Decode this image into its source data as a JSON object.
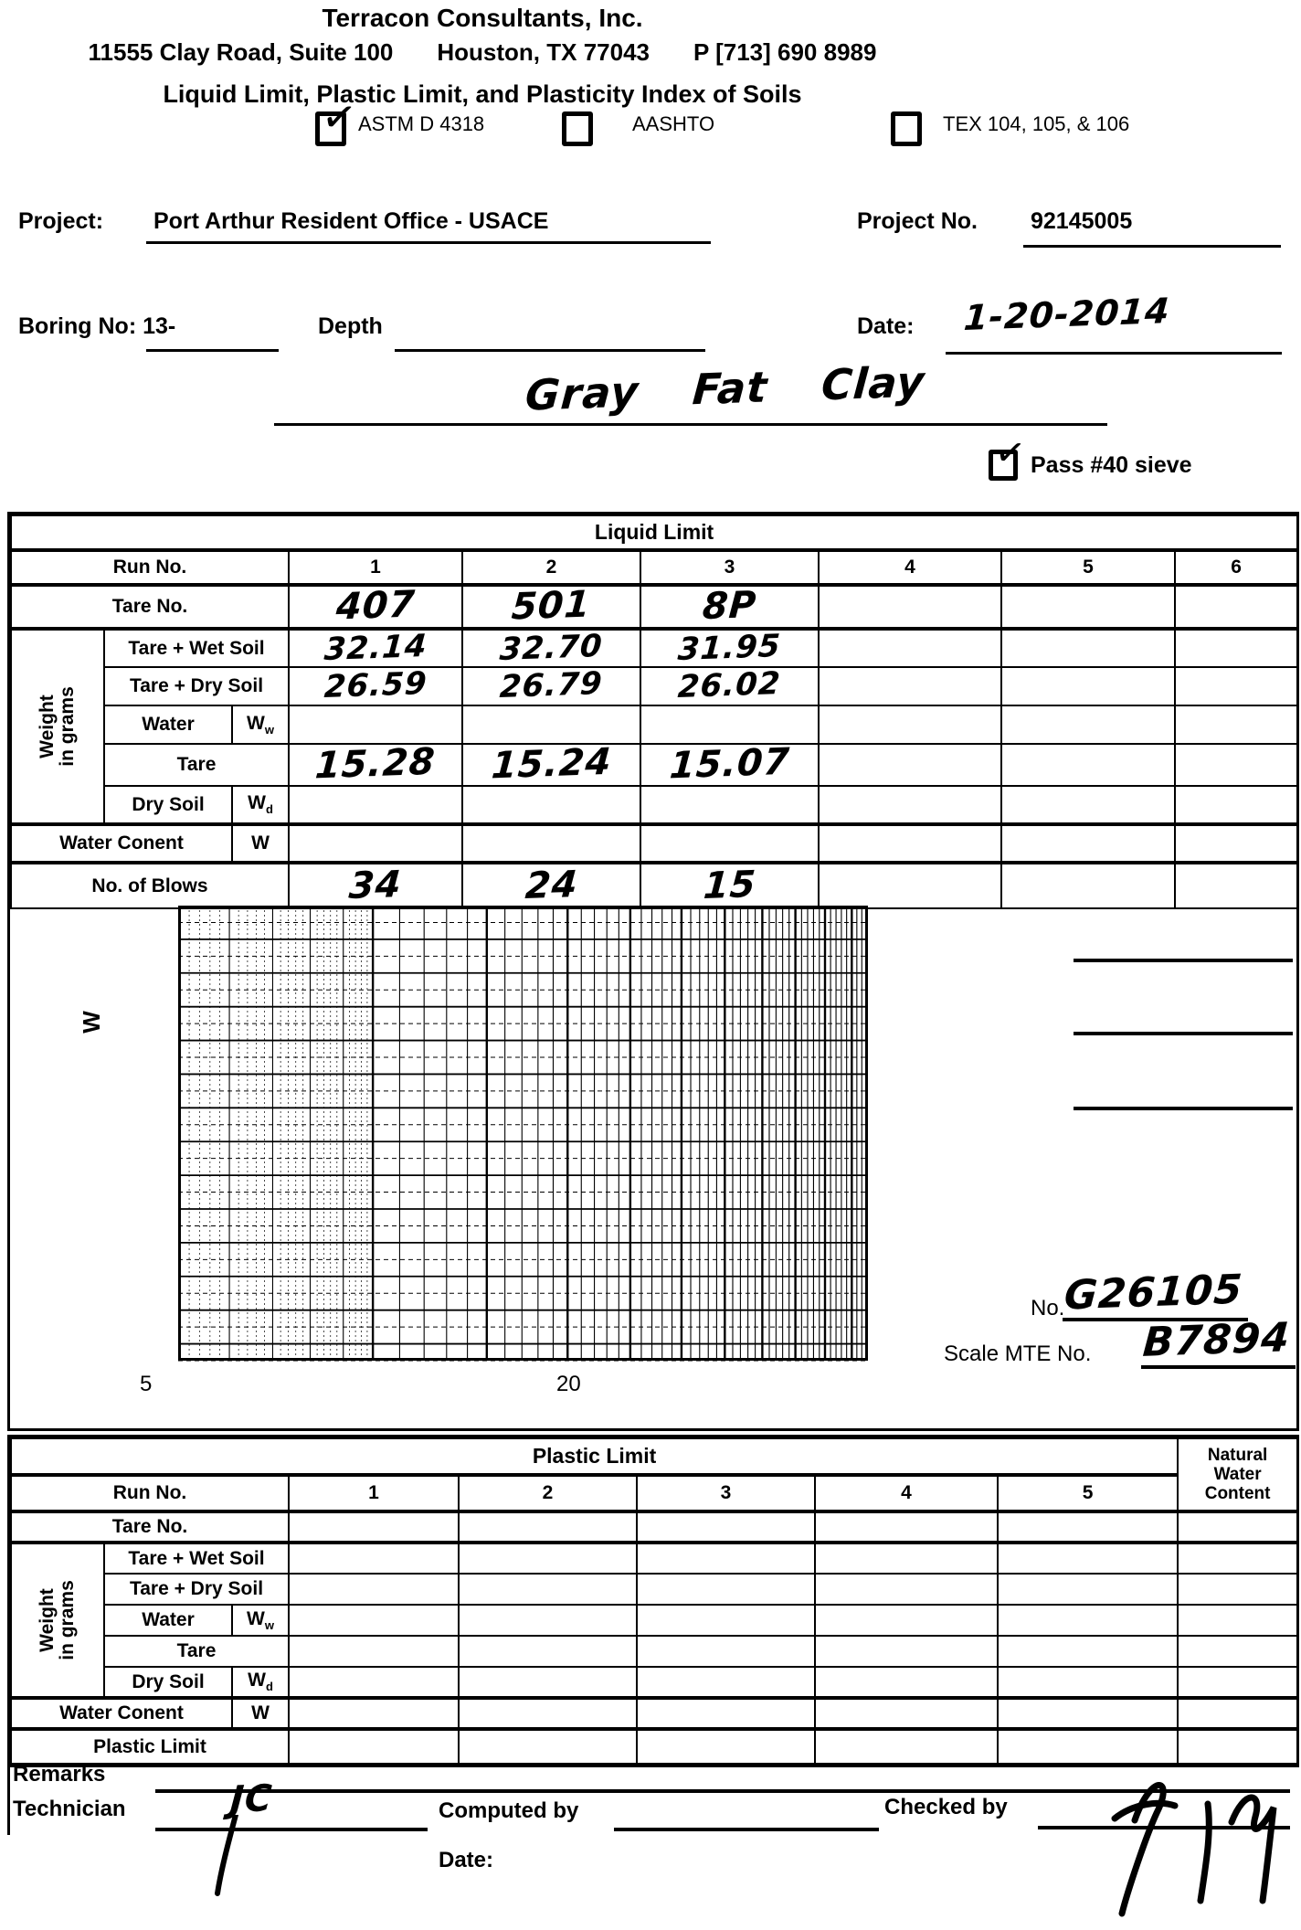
{
  "header": {
    "company": "Terracon Consultants, Inc.",
    "address": "11555 Clay Road, Suite 100",
    "city_state": "Houston, TX 77043",
    "phone": "P  [713] 690 8989",
    "form_title": "Liquid Limit, Plastic Limit, and Plasticity Index of Soils",
    "standards": [
      {
        "label": "ASTM D 4318",
        "checked": true
      },
      {
        "label": "AASHTO",
        "checked": false
      },
      {
        "label": "TEX 104, 105, & 106",
        "checked": false
      }
    ]
  },
  "project": {
    "label": "Project:",
    "value": "Port Arthur Resident Office  -  USACE",
    "number_label": "Project  No.",
    "number": "92145005"
  },
  "boring": {
    "label": "Boring No: 13-",
    "depth_label": "Depth",
    "date_label": "Date:",
    "date": "1-20-2014"
  },
  "sample": {
    "description": "Gray Fat Clay",
    "pass40_label": "Pass #40 sieve",
    "pass40_checked": true
  },
  "liquid_limit": {
    "title": "Liquid Limit",
    "run_label": "Run No.",
    "runs": [
      "1",
      "2",
      "3",
      "4",
      "5",
      "6"
    ],
    "weight_label": "Weight\nin grams",
    "rows": [
      {
        "label": "Tare No.",
        "values": [
          "407",
          "501",
          "8P",
          "",
          "",
          ""
        ]
      },
      {
        "label": "Tare + Wet Soil",
        "values": [
          "32.14",
          "32.70",
          "31.95",
          "",
          "",
          ""
        ]
      },
      {
        "label": "Tare + Dry Soil",
        "values": [
          "26.59",
          "26.79",
          "26.02",
          "",
          "",
          ""
        ]
      },
      {
        "label": "Water",
        "symbol": "W",
        "symbol_sub": "w",
        "values": [
          "",
          "",
          "",
          "",
          "",
          ""
        ]
      },
      {
        "label": "Tare",
        "values": [
          "15.28",
          "15.24",
          "15.07",
          "",
          "",
          ""
        ]
      },
      {
        "label": "Dry Soil",
        "symbol": "W",
        "symbol_sub": "d",
        "values": [
          "",
          "",
          "",
          "",
          "",
          ""
        ]
      },
      {
        "label": "Water Conent",
        "symbol": "W",
        "values": [
          "",
          "",
          "",
          "",
          "",
          ""
        ]
      },
      {
        "label": "No. of Blows",
        "values": [
          "34",
          "24",
          "15",
          "",
          "",
          ""
        ]
      }
    ]
  },
  "chart": {
    "ylabel": "W",
    "x_ticks": [
      "5",
      "20"
    ],
    "type": "semi-log flow-curve grid (no points plotted)"
  },
  "equipment": {
    "no_label": "No.",
    "no_value": "G26105",
    "scale_label": "Scale MTE No.",
    "scale_value": "B7894"
  },
  "plastic_limit": {
    "title": "Plastic Limit",
    "nwc_label": "Natural\nWater\nContent",
    "run_label": "Run No.",
    "runs": [
      "1",
      "2",
      "3",
      "4",
      "5"
    ],
    "weight_label": "Weight\nin grams",
    "rows": [
      {
        "label": "Tare No.",
        "values": [
          "",
          "",
          "",
          "",
          "",
          ""
        ]
      },
      {
        "label": "Tare + Wet Soil",
        "values": [
          "",
          "",
          "",
          "",
          "",
          ""
        ]
      },
      {
        "label": "Tare + Dry Soil",
        "values": [
          "",
          "",
          "",
          "",
          "",
          ""
        ]
      },
      {
        "label": "Water",
        "symbol": "W",
        "symbol_sub": "w",
        "values": [
          "",
          "",
          "",
          "",
          "",
          ""
        ]
      },
      {
        "label": "Tare",
        "values": [
          "",
          "",
          "",
          "",
          "",
          ""
        ]
      },
      {
        "label": "Dry Soil",
        "symbol": "W",
        "symbol_sub": "d",
        "values": [
          "",
          "",
          "",
          "",
          "",
          ""
        ]
      },
      {
        "label": "Water Conent",
        "symbol": "W",
        "values": [
          "",
          "",
          "",
          "",
          "",
          ""
        ]
      },
      {
        "label": "Plastic Limit",
        "values": [
          "",
          "",
          "",
          "",
          "",
          ""
        ]
      }
    ]
  },
  "footer": {
    "remarks_label": "Remarks",
    "technician_label": "Technician",
    "technician_value": "JC",
    "computed_label": "Computed by",
    "date_label": "Date:",
    "checked_label": "Checked by"
  }
}
